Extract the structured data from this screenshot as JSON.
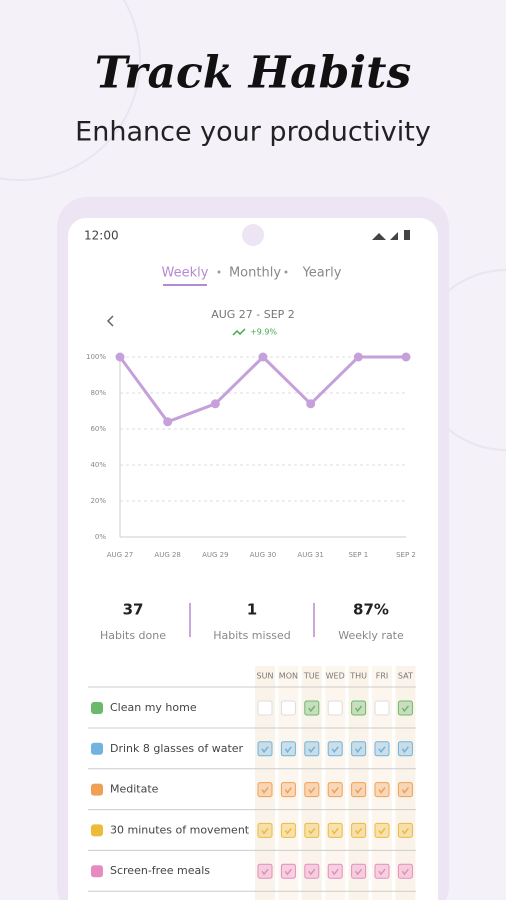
{
  "header": {
    "title": "Track Habits",
    "subtitle": "Enhance your productivity"
  },
  "status_bar": {
    "time": "12:00"
  },
  "tabs": [
    "Weekly",
    "Monthly",
    "Yearly"
  ],
  "active_tab": 0,
  "chart": {
    "type": "line",
    "title": "AUG 27 - SEP 2",
    "change": "+9.9%",
    "color": "#c6a0da",
    "categories": [
      "AUG 27",
      "AUG 28",
      "AUG 29",
      "AUG 30",
      "AUG 31",
      "SEP 1",
      "SEP 2"
    ],
    "values": [
      100,
      64,
      74,
      100,
      74,
      100,
      100
    ],
    "ylim": [
      0,
      100
    ],
    "yticks": [
      {
        "value": 0,
        "label": "0%"
      },
      {
        "value": 20,
        "label": "20%"
      },
      {
        "value": 40,
        "label": "40%"
      },
      {
        "value": 60,
        "label": "60%"
      },
      {
        "value": 80,
        "label": "80%"
      },
      {
        "value": 100,
        "label": "100%"
      }
    ],
    "grid": true
  },
  "stats": [
    {
      "value": "37",
      "label": "Habits done"
    },
    {
      "value": "1",
      "label": "Habits missed"
    },
    {
      "value": "87%",
      "label": "Weekly rate"
    }
  ],
  "habits": {
    "days": [
      "SUN",
      "MON",
      "TUE",
      "WED",
      "THU",
      "FRI",
      "SAT"
    ],
    "rows": [
      {
        "name": "Clean my home",
        "color": "#6cb86c",
        "done": [
          false,
          false,
          true,
          false,
          true,
          false,
          true
        ]
      },
      {
        "name": "Drink 8 glasses of water",
        "color": "#6fb3de",
        "done": [
          true,
          true,
          true,
          true,
          true,
          true,
          true
        ]
      },
      {
        "name": "Meditate",
        "color": "#f0a055",
        "done": [
          true,
          true,
          true,
          true,
          true,
          true,
          true
        ]
      },
      {
        "name": "30 minutes of movement",
        "color": "#ecbb3a",
        "done": [
          true,
          true,
          true,
          true,
          true,
          true,
          true
        ]
      },
      {
        "name": "Screen-free meals",
        "color": "#e58bc2",
        "done": [
          true,
          true,
          true,
          true,
          true,
          true,
          true
        ]
      }
    ]
  }
}
